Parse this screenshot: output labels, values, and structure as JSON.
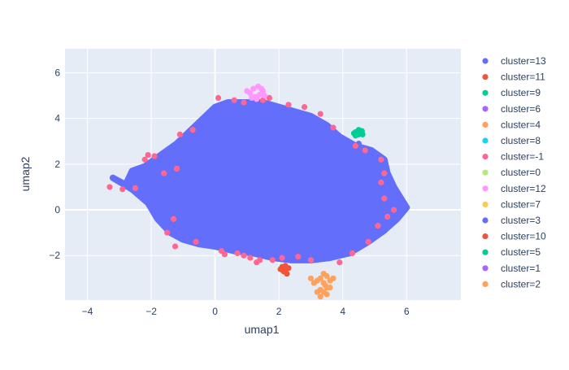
{
  "chart_data": {
    "type": "scatter",
    "xlabel": "umap1",
    "ylabel": "umap2",
    "xlim": [
      -4.7,
      7.7
    ],
    "ylim": [
      -3.95,
      7.05
    ],
    "x_ticks": [
      -4,
      -2,
      0,
      2,
      4,
      6
    ],
    "y_ticks": [
      -2,
      0,
      2,
      4,
      6
    ],
    "grid": true,
    "legend_position": "right",
    "plot_background": "#E5ECF6",
    "series": [
      {
        "name": "cluster=13",
        "color": "#636EFA",
        "points": [
          [
            -3.2,
            1.4
          ],
          [
            -2.8,
            1.1
          ],
          [
            -2.6,
            1.7
          ],
          [
            -2.2,
            1.9
          ],
          [
            -1.9,
            2.2
          ],
          [
            -1.5,
            2.6
          ],
          [
            -1.2,
            2.9
          ],
          [
            -0.9,
            3.3
          ],
          [
            -0.6,
            3.7
          ],
          [
            -0.3,
            4.1
          ],
          [
            0.0,
            4.5
          ],
          [
            0.4,
            4.7
          ],
          [
            0.9,
            4.7
          ],
          [
            1.5,
            4.7
          ],
          [
            2.0,
            4.5
          ],
          [
            2.5,
            4.3
          ],
          [
            3.0,
            4.1
          ],
          [
            3.5,
            3.7
          ],
          [
            3.9,
            3.2
          ],
          [
            4.4,
            2.8
          ],
          [
            4.9,
            2.6
          ],
          [
            5.3,
            2.2
          ],
          [
            5.4,
            1.6
          ],
          [
            5.6,
            1.0
          ],
          [
            6.0,
            0.1
          ],
          [
            5.7,
            -0.4
          ],
          [
            5.3,
            -0.9
          ],
          [
            4.8,
            -1.4
          ],
          [
            4.2,
            -1.9
          ],
          [
            3.6,
            -2.1
          ],
          [
            3.0,
            -2.2
          ],
          [
            2.4,
            -2.2
          ],
          [
            1.8,
            -2.1
          ],
          [
            1.2,
            -1.9
          ],
          [
            0.6,
            -1.8
          ],
          [
            0.0,
            -1.6
          ],
          [
            -0.5,
            -1.5
          ],
          [
            -1.0,
            -1.3
          ],
          [
            -1.4,
            -1.0
          ],
          [
            -1.8,
            -0.4
          ],
          [
            -2.1,
            0.3
          ],
          [
            -2.6,
            0.9
          ],
          [
            -2.5,
            1.3
          ],
          [
            -2.0,
            1.0
          ],
          [
            -1.6,
            1.5
          ],
          [
            -1.3,
            0.6
          ],
          [
            -1.0,
            1.9
          ],
          [
            -0.8,
            0.2
          ],
          [
            -0.6,
            2.6
          ],
          [
            -0.4,
            -0.8
          ],
          [
            -0.2,
            1.2
          ],
          [
            0.0,
            3.2
          ],
          [
            0.2,
            -0.3
          ],
          [
            0.4,
            2.1
          ],
          [
            0.6,
            0.5
          ],
          [
            0.8,
            3.7
          ],
          [
            1.0,
            -1.0
          ],
          [
            1.2,
            1.5
          ],
          [
            1.4,
            4.1
          ],
          [
            1.6,
            0.1
          ],
          [
            1.8,
            2.7
          ],
          [
            2.0,
            -1.5
          ],
          [
            2.2,
            1.0
          ],
          [
            2.4,
            3.3
          ],
          [
            2.6,
            -0.6
          ],
          [
            2.8,
            2.2
          ],
          [
            3.0,
            0.4
          ],
          [
            3.2,
            3.0
          ],
          [
            3.4,
            -1.2
          ],
          [
            3.6,
            1.3
          ],
          [
            3.8,
            2.5
          ],
          [
            4.0,
            -0.3
          ],
          [
            4.2,
            0.9
          ],
          [
            4.4,
            2.0
          ],
          [
            4.6,
            -0.9
          ],
          [
            4.8,
            0.5
          ],
          [
            5.0,
            1.6
          ],
          [
            5.2,
            -0.2
          ],
          [
            5.5,
            0.7
          ],
          [
            -1.1,
            -0.5
          ],
          [
            0.3,
            -1.3
          ],
          [
            1.5,
            -1.6
          ],
          [
            2.7,
            -1.8
          ],
          [
            3.9,
            -1.5
          ],
          [
            -1.8,
            2.0
          ],
          [
            -0.9,
            3.0
          ],
          [
            0.6,
            4.3
          ],
          [
            2.1,
            4.1
          ],
          [
            3.4,
            3.5
          ],
          [
            4.5,
            2.9
          ]
        ]
      },
      {
        "name": "cluster=11",
        "color": "#EF553B",
        "points": [
          [
            2.1,
            -2.5
          ],
          [
            2.2,
            -2.65
          ],
          [
            2.25,
            -2.8
          ],
          [
            2.15,
            -2.7
          ],
          [
            2.3,
            -2.55
          ],
          [
            2.05,
            -2.6
          ],
          [
            2.2,
            -2.45
          ]
        ]
      },
      {
        "name": "cluster=9",
        "color": "#00CC96",
        "points": [
          [
            4.4,
            3.4
          ],
          [
            4.5,
            3.3
          ],
          [
            4.6,
            3.45
          ],
          [
            4.45,
            3.35
          ],
          [
            4.55,
            3.4
          ],
          [
            4.35,
            3.35
          ],
          [
            4.5,
            3.5
          ],
          [
            4.62,
            3.3
          ],
          [
            4.4,
            3.25
          ]
        ]
      },
      {
        "name": "cluster=6",
        "color": "#AB63FA",
        "points": []
      },
      {
        "name": "cluster=4",
        "color": "#FFA15A",
        "points": [
          [
            3.3,
            -3.0
          ],
          [
            3.4,
            -3.2
          ],
          [
            3.5,
            -3.4
          ],
          [
            3.2,
            -3.1
          ],
          [
            3.3,
            -3.5
          ],
          [
            3.5,
            -2.9
          ],
          [
            3.6,
            -3.1
          ],
          [
            3.4,
            -3.6
          ],
          [
            3.3,
            -3.8
          ],
          [
            3.1,
            -3.2
          ],
          [
            3.4,
            -2.8
          ],
          [
            3.6,
            -3.4
          ],
          [
            3.2,
            -3.6
          ],
          [
            3.5,
            -3.7
          ],
          [
            3.0,
            -3.0
          ],
          [
            3.45,
            -3.3
          ],
          [
            3.7,
            -3.0
          ]
        ]
      },
      {
        "name": "cluster=8",
        "color": "#19D3F3",
        "points": []
      },
      {
        "name": "cluster=-1",
        "color": "#FF6692",
        "points": [
          [
            -3.3,
            1.0
          ],
          [
            -2.9,
            0.9
          ],
          [
            -2.5,
            0.95
          ],
          [
            -2.2,
            2.2
          ],
          [
            -2.1,
            2.4
          ],
          [
            -1.9,
            2.35
          ],
          [
            -1.3,
            -0.4
          ],
          [
            -1.5,
            -1.0
          ],
          [
            -1.25,
            -1.6
          ],
          [
            -0.6,
            -1.4
          ],
          [
            0.2,
            -1.8
          ],
          [
            0.9,
            -2.0
          ],
          [
            1.3,
            -2.3
          ],
          [
            1.8,
            -2.2
          ],
          [
            2.1,
            -2.1
          ],
          [
            2.6,
            -2.05
          ],
          [
            3.0,
            -2.2
          ],
          [
            3.9,
            -2.3
          ],
          [
            4.3,
            -1.9
          ],
          [
            4.8,
            -1.4
          ],
          [
            5.1,
            -0.7
          ],
          [
            5.4,
            -0.3
          ],
          [
            5.6,
            0.0
          ],
          [
            5.3,
            0.5
          ],
          [
            5.2,
            1.2
          ],
          [
            5.3,
            1.6
          ],
          [
            5.2,
            2.2
          ],
          [
            4.4,
            2.8
          ],
          [
            4.7,
            2.6
          ],
          [
            3.7,
            3.6
          ],
          [
            3.3,
            4.2
          ],
          [
            2.8,
            4.5
          ],
          [
            2.3,
            4.6
          ],
          [
            1.7,
            4.9
          ],
          [
            1.5,
            4.8
          ],
          [
            0.9,
            4.7
          ],
          [
            0.6,
            4.8
          ],
          [
            0.1,
            4.9
          ],
          [
            -0.7,
            3.5
          ],
          [
            -1.1,
            3.3
          ],
          [
            -1.2,
            1.8
          ],
          [
            -1.6,
            1.6
          ],
          [
            1.1,
            -2.1
          ],
          [
            1.4,
            -2.2
          ],
          [
            0.7,
            -1.9
          ],
          [
            0.3,
            -1.95
          ]
        ]
      },
      {
        "name": "cluster=0",
        "color": "#B6E880",
        "points": []
      },
      {
        "name": "cluster=12",
        "color": "#FF97FF",
        "points": [
          [
            1.1,
            5.1
          ],
          [
            1.2,
            5.3
          ],
          [
            1.35,
            5.4
          ],
          [
            1.5,
            5.2
          ],
          [
            1.25,
            4.95
          ],
          [
            1.4,
            5.05
          ],
          [
            1.0,
            5.2
          ],
          [
            1.55,
            5.0
          ],
          [
            1.3,
            4.85
          ],
          [
            1.15,
            4.9
          ],
          [
            1.45,
            5.3
          ]
        ]
      },
      {
        "name": "cluster=7",
        "color": "#FECB52",
        "points": []
      },
      {
        "name": "cluster=3",
        "color": "#636EFA",
        "points": []
      },
      {
        "name": "cluster=10",
        "color": "#EF553B",
        "points": []
      },
      {
        "name": "cluster=5",
        "color": "#00CC96",
        "points": []
      },
      {
        "name": "cluster=1",
        "color": "#AB63FA",
        "points": []
      },
      {
        "name": "cluster=2",
        "color": "#FFA15A",
        "points": []
      }
    ]
  }
}
